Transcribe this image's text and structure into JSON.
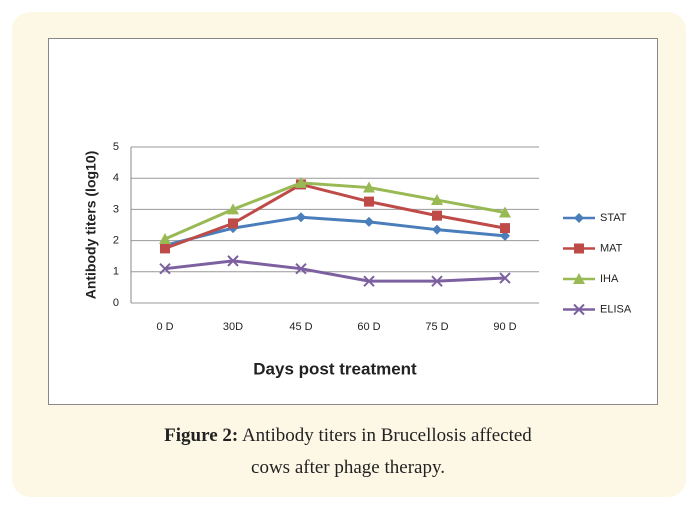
{
  "chart_data": {
    "type": "line",
    "xlabel": "Days post treatment",
    "ylabel": "Antibody titers (log10)",
    "categories": [
      "0 D",
      "30D",
      "45 D",
      "60 D",
      "75 D",
      "90 D"
    ],
    "series": [
      {
        "name": "STAT",
        "color": "#4a7ebb",
        "marker": "diamond",
        "values": [
          1.85,
          2.4,
          2.75,
          2.6,
          2.35,
          2.15
        ]
      },
      {
        "name": "MAT",
        "color": "#be4b48",
        "marker": "square",
        "values": [
          1.75,
          2.55,
          3.8,
          3.25,
          2.8,
          2.4
        ]
      },
      {
        "name": "IHA",
        "color": "#98b954",
        "marker": "triangle",
        "values": [
          2.05,
          3.0,
          3.85,
          3.7,
          3.3,
          2.9
        ]
      },
      {
        "name": "ELISA",
        "color": "#7d60a0",
        "marker": "x",
        "values": [
          1.1,
          1.35,
          1.1,
          0.7,
          0.7,
          0.8
        ]
      }
    ],
    "ylim": [
      0,
      5
    ],
    "yticks": [
      0,
      1,
      2,
      3,
      4,
      5
    ],
    "grid": true,
    "legend": "right"
  },
  "caption": {
    "label": "Figure 2:",
    "lines": [
      "Antibody titers in Brucellosis affected",
      "cows after phage therapy."
    ]
  }
}
